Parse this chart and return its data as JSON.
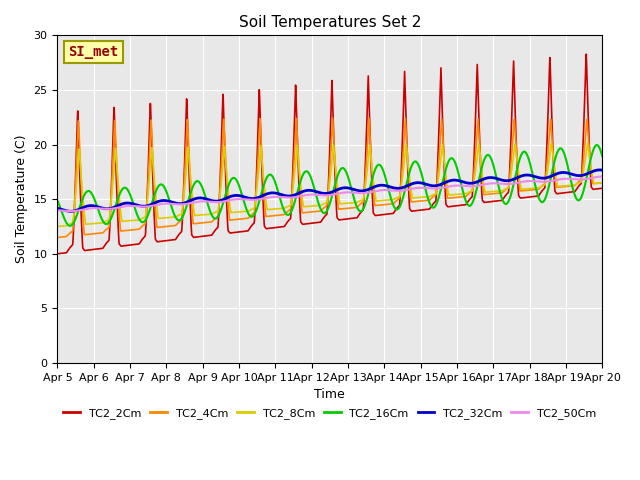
{
  "title": "Soil Temperatures Set 2",
  "xlabel": "Time",
  "ylabel": "Soil Temperature (C)",
  "ylim": [
    0,
    30
  ],
  "series": {
    "TC2_2Cm": {
      "color": "#CC0000",
      "lw": 1.2
    },
    "TC2_4Cm": {
      "color": "#FF8800",
      "lw": 1.2
    },
    "TC2_8Cm": {
      "color": "#DDCC00",
      "lw": 1.2
    },
    "TC2_16Cm": {
      "color": "#00CC00",
      "lw": 1.5
    },
    "TC2_32Cm": {
      "color": "#0000CC",
      "lw": 2.0
    },
    "TC2_50Cm": {
      "color": "#EE88EE",
      "lw": 1.5
    }
  },
  "annotation_text": "SI_met",
  "bg_color": "#E8E8E8",
  "fig_bg": "#FFFFFF",
  "tick_dates": [
    "Apr 5",
    "Apr 6",
    "Apr 7",
    "Apr 8",
    "Apr 9",
    "Apr 10",
    "Apr 11",
    "Apr 12",
    "Apr 13",
    "Apr 14",
    "Apr 15",
    "Apr 16",
    "Apr 17",
    "Apr 18",
    "Apr 19",
    "Apr 20"
  ],
  "tick_positions": [
    0,
    1,
    2,
    3,
    4,
    5,
    6,
    7,
    8,
    9,
    10,
    11,
    12,
    13,
    14,
    15
  ]
}
